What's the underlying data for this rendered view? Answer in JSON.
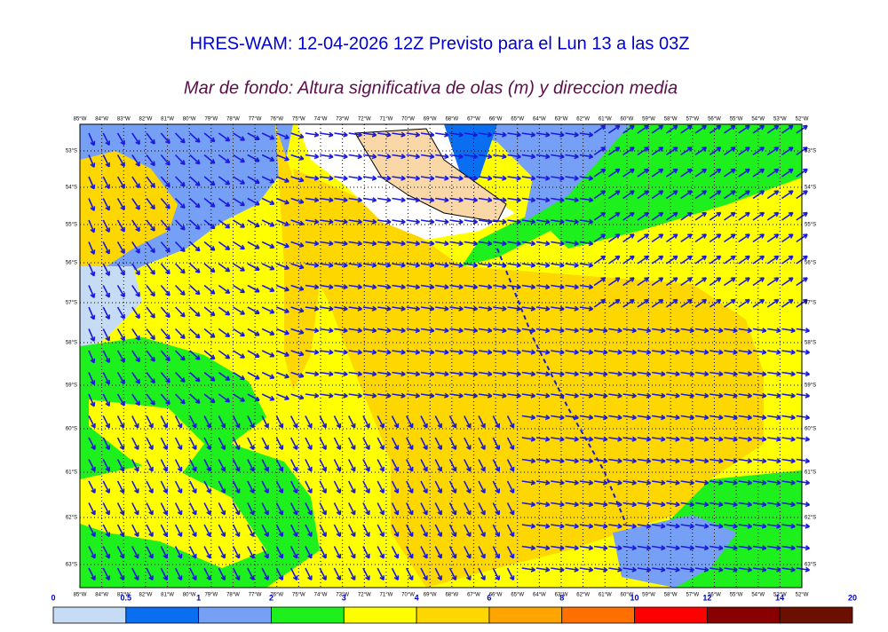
{
  "title": "HRES-WAM: 12-04-2026 12Z Previsto para el Lun 13 a las 03Z",
  "subtitle": "Mar de fondo: Altura significativa de olas (m) y direccion media",
  "lon_labels": [
    "85°W",
    "84°W",
    "83°W",
    "82°W",
    "81°W",
    "80°W",
    "79°W",
    "78°W",
    "77°W",
    "76°W",
    "75°W",
    "74°W",
    "73°W",
    "72°W",
    "71°W",
    "70°W",
    "69°W",
    "68°W",
    "67°W",
    "66°W",
    "65°W",
    "64°W",
    "63°W",
    "62°W",
    "61°W",
    "60°W",
    "59°W",
    "58°W",
    "57°W",
    "56°W",
    "55°W",
    "54°W",
    "53°W",
    "52°W"
  ],
  "lat_labels": [
    "53°S",
    "54°S",
    "55°S",
    "56°S",
    "57°S",
    "58°S",
    "59°S",
    "60°S",
    "61°S",
    "62°S",
    "63°S"
  ],
  "colorbar": {
    "ticks": [
      0,
      0.5,
      1,
      2,
      3,
      4,
      6,
      8,
      10,
      12,
      14,
      20
    ],
    "colors": [
      "#c6dcf5",
      "#0a6ef0",
      "#76a0f5",
      "#1ef01e",
      "#ffff00",
      "#ffd700",
      "#ffa500",
      "#ff7000",
      "#ff0000",
      "#880000",
      "#6b1000",
      "#333333"
    ]
  }
}
